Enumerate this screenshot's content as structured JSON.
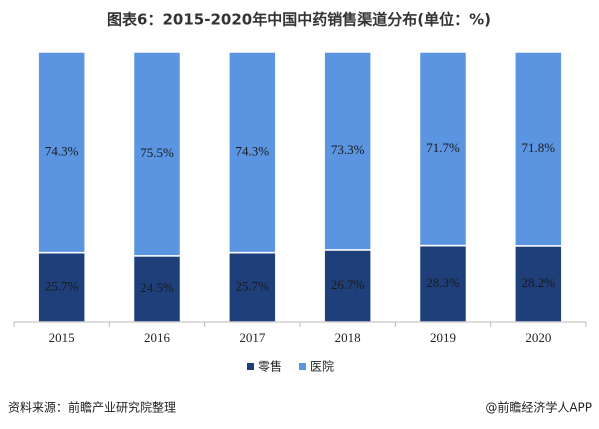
{
  "chart_data": {
    "type": "stacked_bar",
    "title": "图表6：2015-2020年中国中药销售渠道分布(单位：%)",
    "categories": [
      "2015",
      "2016",
      "2017",
      "2018",
      "2019",
      "2020"
    ],
    "series": [
      {
        "name": "零售",
        "color": "#1f3f7a",
        "values": [
          25.7,
          24.5,
          25.7,
          26.7,
          28.3,
          28.2
        ],
        "value_labels": [
          "25.7%",
          "24.5%",
          "25.7%",
          "26.7%",
          "28.3%",
          "28.2%"
        ]
      },
      {
        "name": "医院",
        "color": "#5b95e1",
        "values": [
          74.3,
          75.5,
          74.3,
          73.3,
          71.7,
          71.8
        ],
        "value_labels": [
          "74.3%",
          "75.5%",
          "74.3%",
          "73.3%",
          "71.7%",
          "71.8%"
        ]
      }
    ],
    "ylim": [
      0,
      100
    ],
    "source": "资料来源：前瞻产业研究院整理",
    "credit": "@前瞻经济学人APP"
  }
}
